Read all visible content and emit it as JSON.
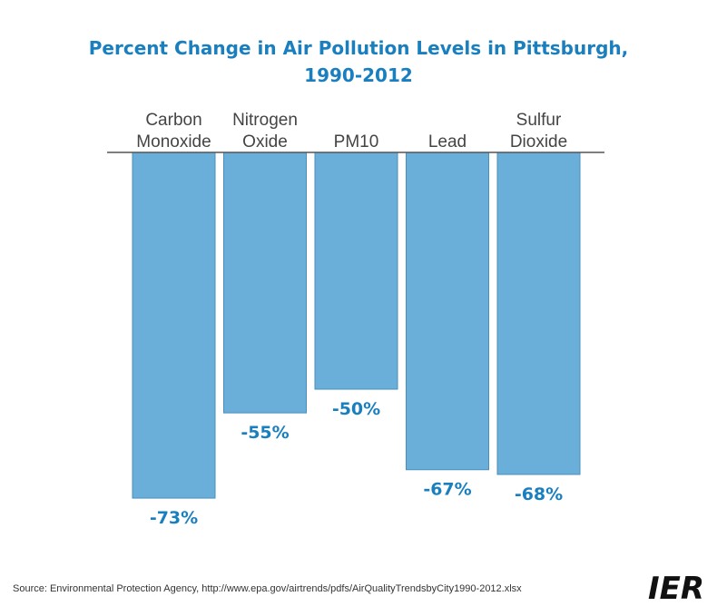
{
  "chart_data": {
    "type": "bar",
    "title": "Percent Change in Air Pollution Levels in Pittsburgh,",
    "subtitle": "1990-2012",
    "categories": [
      [
        "Carbon",
        "Monoxide"
      ],
      [
        "Nitrogen",
        "Oxide"
      ],
      [
        "PM10"
      ],
      [
        "Lead"
      ],
      [
        "Sulfur",
        "Dioxide"
      ]
    ],
    "values": [
      -73,
      -55,
      -50,
      -67,
      -68
    ],
    "value_labels": [
      "-73%",
      "-55%",
      "-50%",
      "-67%",
      "-68%"
    ],
    "ylim": [
      -100,
      0
    ],
    "grid": false,
    "legend": "none",
    "bar_color": "#6aafd9",
    "label_color": "#1a7fbf"
  },
  "source": "Source: Environmental Protection Agency, http://www.epa.gov/airtrends/pdfs/AirQualityTrendsbyCity1990-2012.xlsx",
  "logo": "IER"
}
